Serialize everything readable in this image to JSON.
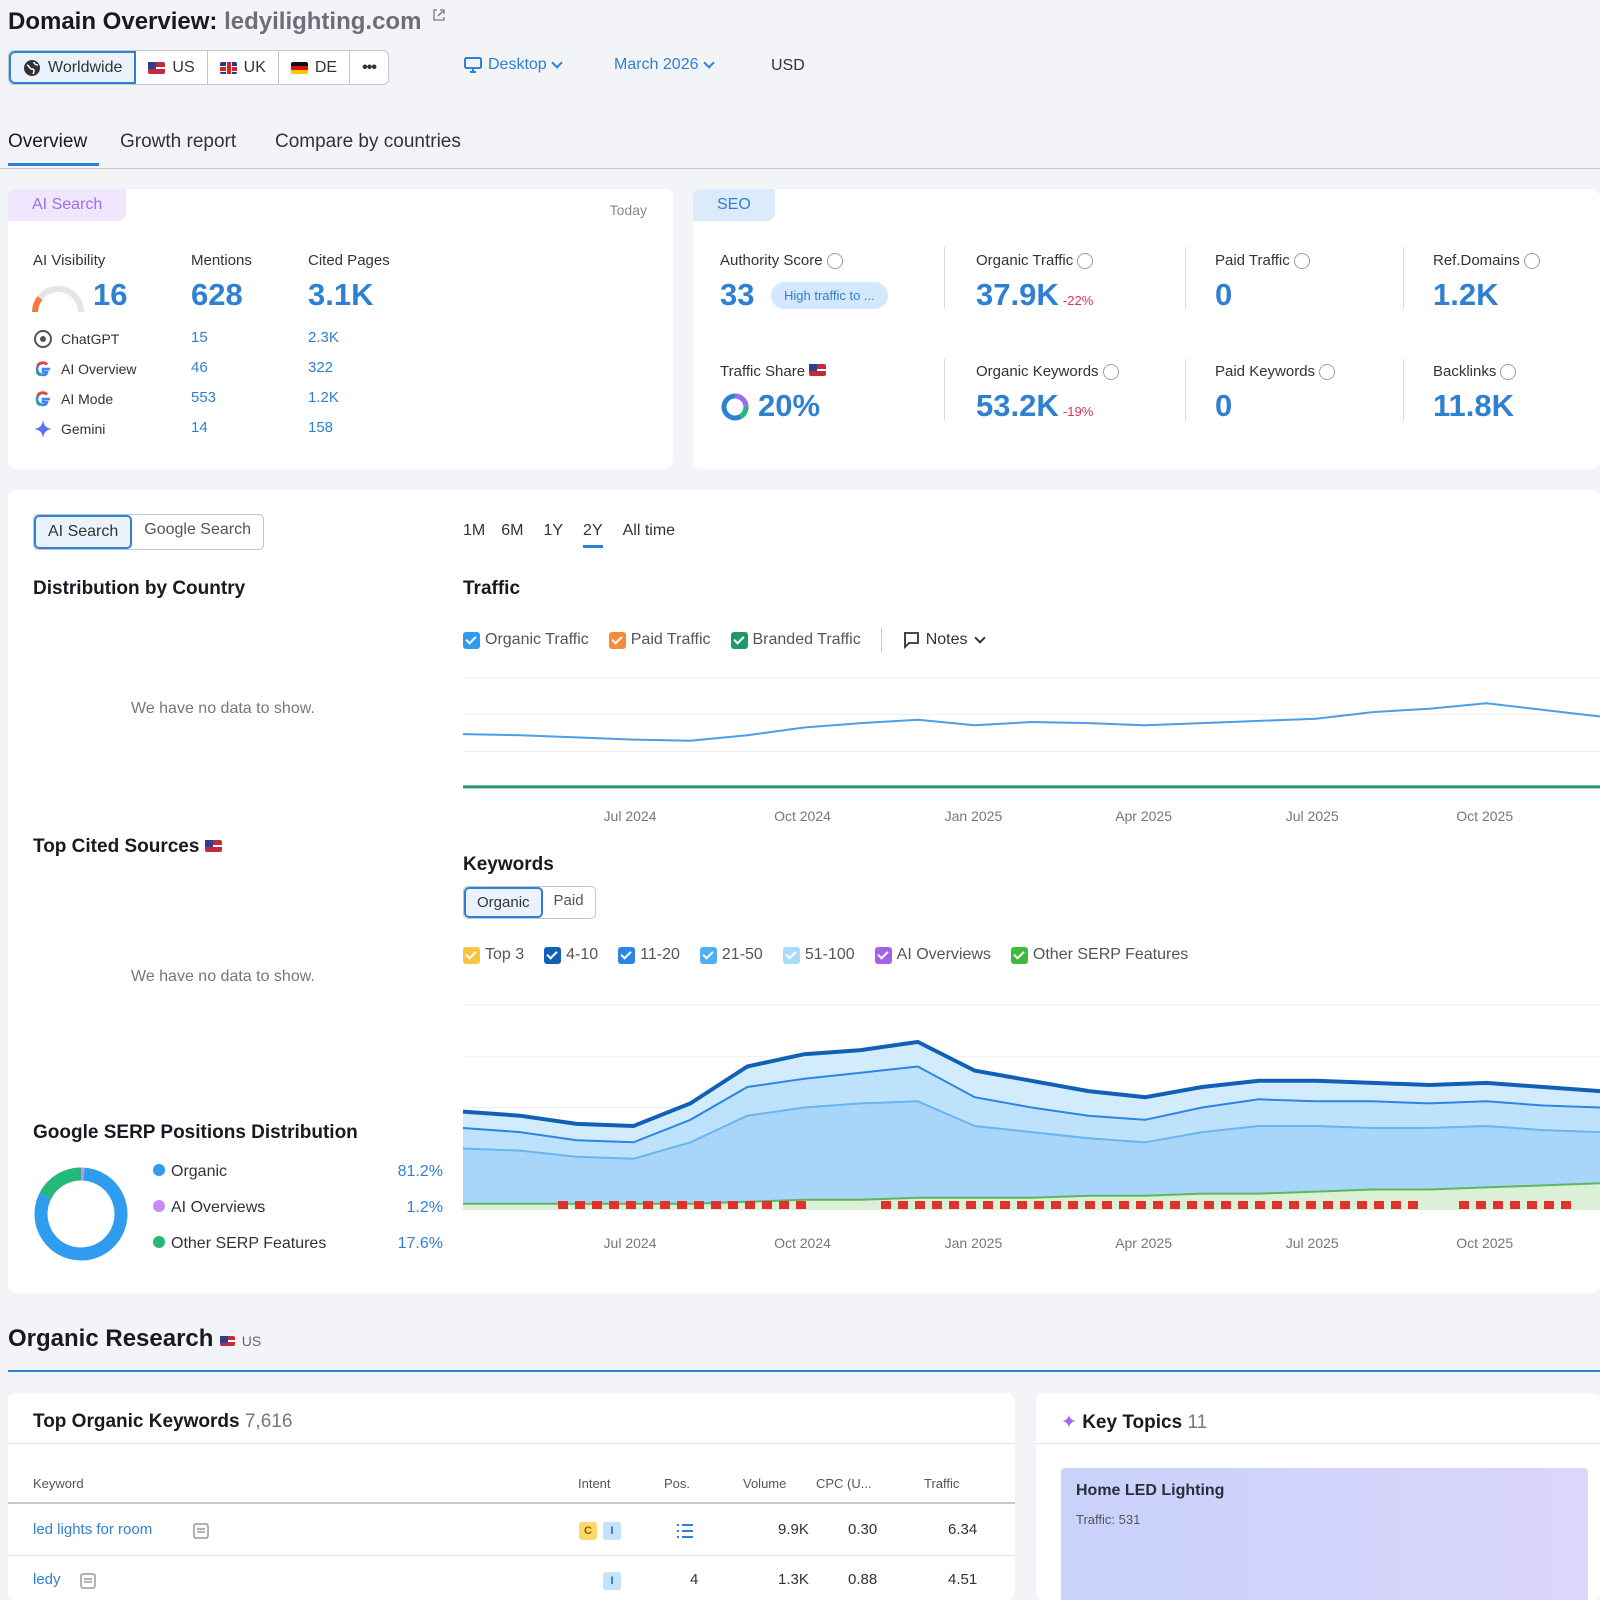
{
  "header": {
    "title_prefix": "Domain Overview:",
    "domain": "ledyilighting.com"
  },
  "locations": {
    "worldwide": "Worldwide",
    "us": "US",
    "uk": "UK",
    "de": "DE",
    "more": "•••"
  },
  "filters": {
    "device": "Desktop",
    "date": "March 2026",
    "currency": "USD"
  },
  "tabs": {
    "overview": "Overview",
    "growth": "Growth report",
    "compare": "Compare by countries"
  },
  "ai_card": {
    "label": "AI Search",
    "today": "Today",
    "visibility_label": "AI Visibility",
    "visibility_value": "16",
    "mentions_label": "Mentions",
    "mentions_value": "628",
    "cited_label": "Cited Pages",
    "cited_value": "3.1K",
    "rows": [
      {
        "name": "ChatGPT",
        "mentions": "15",
        "cited": "2.3K"
      },
      {
        "name": "AI Overview",
        "mentions": "46",
        "cited": "322"
      },
      {
        "name": "AI Mode",
        "mentions": "553",
        "cited": "1.2K"
      },
      {
        "name": "Gemini",
        "mentions": "14",
        "cited": "158"
      }
    ]
  },
  "seo_card": {
    "label": "SEO",
    "authority_label": "Authority Score",
    "authority_value": "33",
    "authority_badge": "High traffic to ...",
    "organic_traffic_label": "Organic Traffic",
    "organic_traffic_value": "37.9K",
    "organic_traffic_change": "-22%",
    "paid_traffic_label": "Paid Traffic",
    "paid_traffic_value": "0",
    "ref_domains_label": "Ref.Domains",
    "ref_domains_value": "1.2K",
    "traffic_share_label": "Traffic Share",
    "traffic_share_value": "20%",
    "organic_keywords_label": "Organic Keywords",
    "organic_keywords_value": "53.2K",
    "organic_keywords_change": "-19%",
    "paid_keywords_label": "Paid Keywords",
    "paid_keywords_value": "0",
    "backlinks_label": "Backlinks",
    "backlinks_value": "11.8K"
  },
  "main_panel": {
    "seg_ai": "AI Search",
    "seg_google": "Google Search",
    "ranges": [
      "1M",
      "6M",
      "1Y",
      "2Y",
      "All time"
    ],
    "distribution_title": "Distribution by Country",
    "no_data_1": "We have no data to show.",
    "cited_sources_title": "Top Cited Sources",
    "no_data_2": "We have no data to show.",
    "serp_title": "Google SERP Positions Distribution",
    "serp_items": [
      {
        "label": "Organic",
        "value": "81.2%"
      },
      {
        "label": "AI Overviews",
        "value": "1.2%"
      },
      {
        "label": "Other SERP Features",
        "value": "17.6%"
      }
    ],
    "traffic_title": "Traffic",
    "traffic_legend": [
      "Organic Traffic",
      "Paid Traffic",
      "Branded Traffic"
    ],
    "notes": "Notes",
    "axis_months": [
      "Jul 2024",
      "Oct 2024",
      "Jan 2025",
      "Apr 2025",
      "Jul 2025",
      "Oct 2025"
    ],
    "keywords_title": "Keywords",
    "kw_seg_organic": "Organic",
    "kw_seg_paid": "Paid",
    "kw_legend": [
      "Top 3",
      "4-10",
      "11-20",
      "21-50",
      "51-100",
      "AI Overviews",
      "Other SERP Features"
    ]
  },
  "chart_data": [
    {
      "type": "line",
      "title": "Traffic",
      "x": [
        "Apr 2024",
        "May 2024",
        "Jun 2024",
        "Jul 2024",
        "Aug 2024",
        "Sep 2024",
        "Oct 2024",
        "Nov 2024",
        "Dec 2024",
        "Jan 2025",
        "Feb 2025",
        "Mar 2025",
        "Apr 2025",
        "May 2025",
        "Jun 2025",
        "Jul 2025",
        "Aug 2025",
        "Sep 2025",
        "Oct 2025",
        "Nov 2025",
        "Dec 2025"
      ],
      "series": [
        {
          "name": "Organic Traffic",
          "values": [
            49,
            48,
            46,
            44,
            43,
            48,
            55,
            59,
            62,
            57,
            60,
            59,
            57,
            59,
            61,
            63,
            69,
            72,
            77,
            71,
            65
          ]
        },
        {
          "name": "Branded Traffic",
          "values": [
            1,
            1,
            1,
            1,
            1,
            1,
            1,
            1,
            1,
            1,
            1,
            1,
            1,
            1,
            1,
            1,
            1,
            1,
            1,
            1,
            1
          ]
        }
      ],
      "ylim": [
        0,
        100
      ],
      "grid": true,
      "legend": "top-left"
    },
    {
      "type": "area",
      "title": "Keywords",
      "x": [
        "Apr 2024",
        "May 2024",
        "Jun 2024",
        "Jul 2024",
        "Aug 2024",
        "Sep 2024",
        "Oct 2024",
        "Nov 2024",
        "Dec 2024",
        "Jan 2025",
        "Feb 2025",
        "Mar 2025",
        "Apr 2025",
        "May 2025",
        "Jun 2025",
        "Jul 2025",
        "Aug 2025",
        "Sep 2025",
        "Oct 2025",
        "Nov 2025",
        "Dec 2025"
      ],
      "series": [
        {
          "name": "51-100",
          "values": [
            48,
            46,
            42,
            41,
            52,
            70,
            76,
            78,
            82,
            68,
            63,
            58,
            55,
            60,
            63,
            63,
            62,
            61,
            62,
            60,
            58
          ]
        },
        {
          "name": "21-50",
          "values": [
            40,
            38,
            34,
            33,
            44,
            60,
            64,
            67,
            70,
            55,
            50,
            46,
            44,
            50,
            54,
            53,
            53,
            52,
            53,
            51,
            50
          ]
        },
        {
          "name": "11-20",
          "values": [
            30,
            29,
            26,
            25,
            33,
            46,
            50,
            52,
            53,
            41,
            38,
            35,
            33,
            38,
            41,
            41,
            40,
            40,
            41,
            39,
            38
          ]
        },
        {
          "name": "Other SERP Features",
          "values": [
            3,
            3,
            3,
            3,
            3,
            4,
            5,
            5,
            6,
            6,
            6,
            7,
            7,
            8,
            8,
            9,
            10,
            10,
            11,
            12,
            13
          ]
        }
      ],
      "ylim": [
        0,
        100
      ],
      "grid": true,
      "legend": "top-left"
    },
    {
      "type": "pie",
      "title": "Google SERP Positions Distribution",
      "categories": [
        "Organic",
        "AI Overviews",
        "Other SERP Features"
      ],
      "values": [
        81.2,
        1.2,
        17.6
      ]
    }
  ],
  "organic": {
    "title": "Organic Research",
    "country": "US",
    "keywords_title": "Top Organic Keywords",
    "keywords_count": "7,616",
    "columns": [
      "Keyword",
      "Intent",
      "Pos.",
      "Volume",
      "CPC (U...",
      "Traffic"
    ],
    "rows": [
      {
        "keyword": "led lights for room",
        "intent": [
          "C",
          "I"
        ],
        "pos": "",
        "volume": "9.9K",
        "cpc": "0.30",
        "traffic": "6.34"
      },
      {
        "keyword": "ledy",
        "intent": [
          "I"
        ],
        "pos": "4",
        "volume": "1.3K",
        "cpc": "0.88",
        "traffic": "4.51"
      }
    ],
    "topics_title": "Key Topics",
    "topics_count": "11",
    "topic_name": "Home LED Lighting",
    "topic_traffic": "Traffic: 531"
  },
  "colors": {
    "accent": "#2f80d1",
    "ai_purple": "#9b6df0",
    "negative": "#e0305e",
    "organic_line": "#4a9fe6",
    "branded_line": "#1e9a68",
    "paid_orange": "#f58b3a",
    "serp_green": "#25b877"
  }
}
